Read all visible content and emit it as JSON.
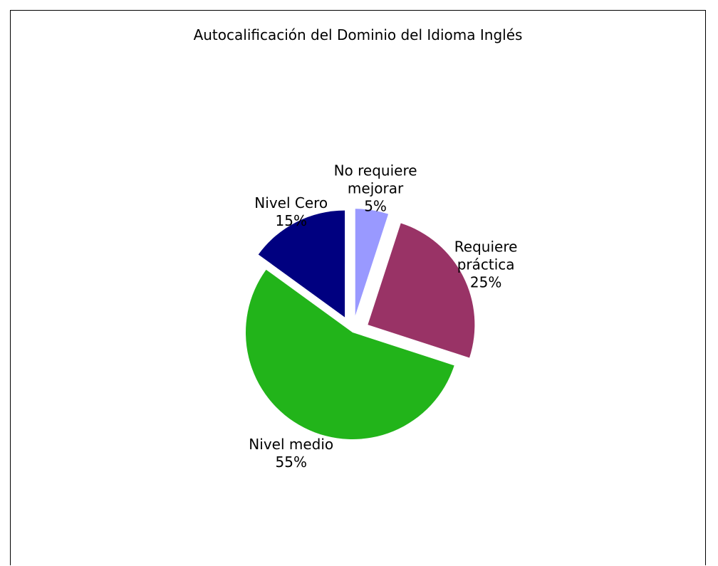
{
  "chart_data": {
    "type": "pie",
    "title": "Autocalificación del Dominio del Idioma Inglés",
    "slices": [
      {
        "name": "No requiere mejorar",
        "label_lines": [
          "No requiere",
          "mejorar"
        ],
        "value": 5,
        "percent_label": "5%",
        "color": "#9999ff",
        "exploded": true
      },
      {
        "name": "Requiere práctica",
        "label_lines": [
          "Requiere",
          "práctica"
        ],
        "value": 25,
        "percent_label": "25%",
        "color": "#993366",
        "exploded": true
      },
      {
        "name": "Nivel medio",
        "label_lines": [
          "Nivel medio"
        ],
        "value": 55,
        "percent_label": "55%",
        "color": "#22b41a",
        "exploded": false
      },
      {
        "name": "Nivel Cero",
        "label_lines": [
          "Nivel Cero"
        ],
        "value": 15,
        "percent_label": "15%",
        "color": "#000080",
        "exploded": true
      }
    ],
    "start_angle": "top",
    "direction": "clockwise",
    "legend": "none"
  }
}
